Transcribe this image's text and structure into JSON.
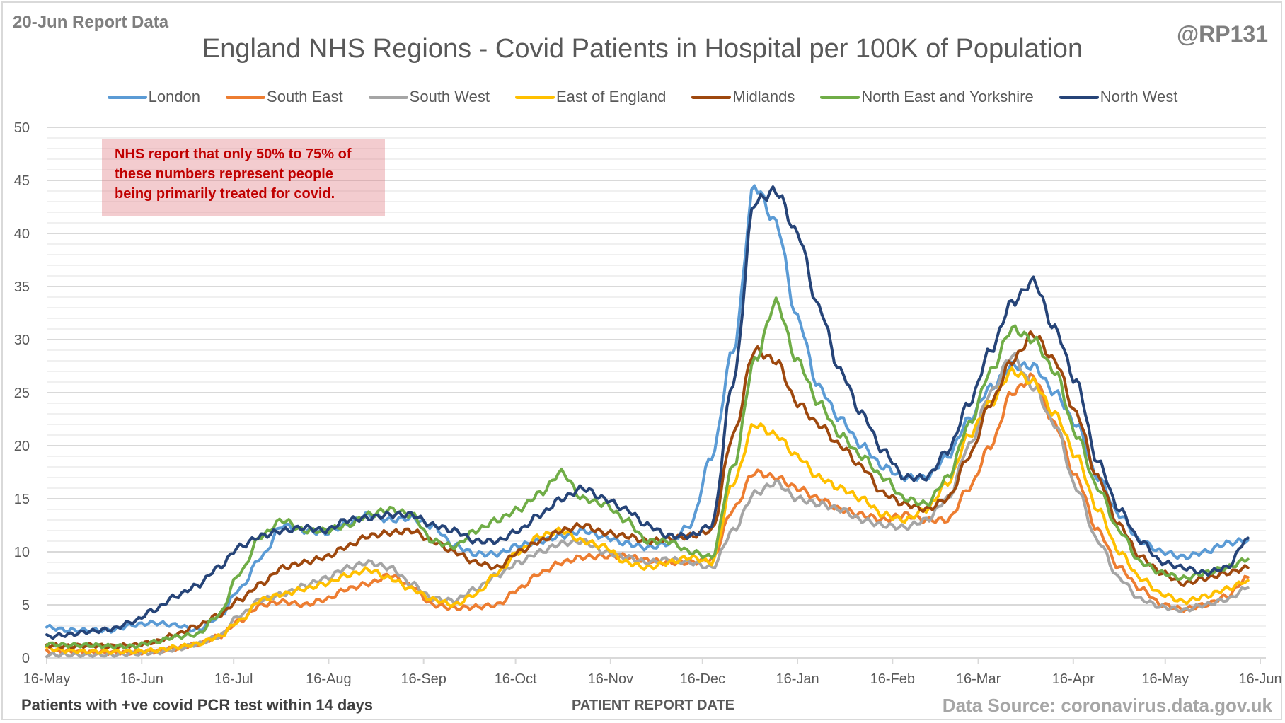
{
  "header": {
    "report_label": "20-Jun Report Data",
    "handle": "@RP131"
  },
  "annotation": {
    "lines": [
      "NHS report that only 50% to 75% of",
      "these numbers represent people",
      "being primarily treated for covid."
    ]
  },
  "footer": {
    "note": "Patients with +ve covid PCR test within 14 days",
    "source": "Data Source: coronavirus.data.gov.uk"
  },
  "chart_data": {
    "type": "line",
    "title": "England NHS Regions - Covid Patients in Hospital per 100K of Population",
    "xlabel": "PATIENT REPORT DATE",
    "ylabel": "",
    "ylim": [
      0,
      50
    ],
    "yticks": [
      0,
      5,
      10,
      15,
      20,
      25,
      30,
      35,
      40,
      45,
      50
    ],
    "grid": "major and minor horizontal (minor every 1)",
    "legend_position": "top",
    "x_start": "16-May",
    "x_step_days": 7,
    "x_total_days": 396,
    "xtick_labels": [
      "16-May",
      "16-Jun",
      "16-Jul",
      "16-Aug",
      "16-Sep",
      "16-Oct",
      "16-Nov",
      "16-Dec",
      "16-Jan",
      "16-Feb",
      "16-Mar",
      "16-Apr",
      "16-May",
      "16-Jun"
    ],
    "xtick_days": [
      0,
      31,
      61,
      92,
      123,
      153,
      184,
      214,
      245,
      276,
      304,
      335,
      365,
      396
    ],
    "series": [
      {
        "name": "London",
        "color": "#5b9bd5",
        "values": [
          2.9,
          2.6,
          2.6,
          2.6,
          3.1,
          3.3,
          3.1,
          2.6,
          3.8,
          6.5,
          9.5,
          12.5,
          12.0,
          11.8,
          12.6,
          13.5,
          13.0,
          13.2,
          12.4,
          10.6,
          9.8,
          9.8,
          10.6,
          11.0,
          11.5,
          12.0,
          11.4,
          10.8,
          10.4,
          10.8,
          12.5,
          19.0,
          29.0,
          44.5,
          41.0,
          32.0,
          25.5,
          22.5,
          20.0,
          18.0,
          17.0,
          17.0,
          19.0,
          22.5,
          25.5,
          27.5,
          27.5,
          25.0,
          22.0,
          17.0,
          13.5,
          11.0,
          10.0,
          9.5,
          10.0,
          10.8,
          11.1
        ]
      },
      {
        "name": "South East",
        "color": "#ed7d31",
        "values": [
          0.6,
          0.6,
          0.5,
          0.5,
          0.5,
          0.6,
          0.9,
          1.3,
          2.0,
          3.5,
          5.0,
          5.3,
          5.0,
          5.5,
          6.5,
          7.0,
          7.8,
          6.8,
          5.0,
          4.7,
          4.8,
          5.0,
          6.5,
          8.0,
          9.0,
          9.5,
          9.6,
          9.6,
          9.2,
          9.0,
          9.0,
          9.3,
          14.0,
          17.5,
          17.0,
          16.0,
          15.0,
          14.0,
          13.5,
          13.0,
          13.5,
          13.0,
          13.0,
          16.0,
          20.0,
          25.0,
          26.5,
          22.0,
          17.0,
          12.0,
          8.5,
          6.5,
          5.0,
          4.6,
          5.0,
          5.8,
          7.6
        ]
      },
      {
        "name": "South West",
        "color": "#a5a5a5",
        "values": [
          0.3,
          0.3,
          0.3,
          0.3,
          0.4,
          0.5,
          0.8,
          1.3,
          2.0,
          4.0,
          5.5,
          6.0,
          6.8,
          7.5,
          8.5,
          9.0,
          8.5,
          7.0,
          5.6,
          5.4,
          6.5,
          7.8,
          9.0,
          10.0,
          10.8,
          11.0,
          10.0,
          9.5,
          9.0,
          9.3,
          9.0,
          8.5,
          12.0,
          15.5,
          16.5,
          15.0,
          14.5,
          14.0,
          13.0,
          12.5,
          12.3,
          13.0,
          15.0,
          20.0,
          25.0,
          28.5,
          25.5,
          22.0,
          16.0,
          11.0,
          7.5,
          5.5,
          4.8,
          4.5,
          5.0,
          5.5,
          6.6
        ]
      },
      {
        "name": "East of England",
        "color": "#ffc000",
        "values": [
          0.9,
          0.7,
          0.6,
          0.6,
          0.6,
          0.7,
          1.0,
          1.3,
          2.0,
          3.5,
          5.5,
          6.0,
          6.5,
          7.0,
          7.8,
          8.3,
          7.5,
          6.5,
          5.5,
          5.0,
          6.0,
          8.0,
          10.0,
          11.5,
          12.0,
          11.0,
          10.5,
          9.0,
          8.5,
          9.0,
          9.5,
          9.0,
          16.5,
          22.0,
          21.0,
          19.0,
          17.0,
          16.0,
          15.0,
          13.5,
          13.0,
          14.0,
          16.5,
          21.0,
          24.0,
          27.0,
          26.0,
          23.0,
          19.0,
          14.0,
          10.0,
          7.5,
          6.0,
          5.3,
          5.8,
          6.5,
          7.3
        ]
      },
      {
        "name": "Midlands",
        "color": "#9e480e",
        "values": [
          1.2,
          1.1,
          1.2,
          1.1,
          1.2,
          1.5,
          2.2,
          3.0,
          4.0,
          5.5,
          7.0,
          8.5,
          9.0,
          9.5,
          10.5,
          11.5,
          11.8,
          12.0,
          11.0,
          10.0,
          9.0,
          8.5,
          10.0,
          11.0,
          12.0,
          12.5,
          11.8,
          11.5,
          11.0,
          11.2,
          11.5,
          12.0,
          21.0,
          29.0,
          28.0,
          24.0,
          22.0,
          20.0,
          18.0,
          15.5,
          14.5,
          14.0,
          15.0,
          19.0,
          24.0,
          28.0,
          30.5,
          28.0,
          23.0,
          17.0,
          12.5,
          9.5,
          8.0,
          7.0,
          7.5,
          8.0,
          8.5
        ]
      },
      {
        "name": "North East and Yorkshire",
        "color": "#70ad47",
        "values": [
          1.3,
          1.2,
          1.2,
          1.1,
          1.1,
          1.5,
          2.0,
          2.2,
          4.0,
          8.0,
          11.5,
          13.0,
          12.0,
          12.0,
          12.5,
          13.5,
          14.0,
          13.5,
          11.0,
          10.5,
          12.0,
          13.0,
          14.0,
          15.5,
          17.5,
          15.0,
          14.5,
          13.0,
          11.0,
          11.0,
          10.0,
          9.5,
          18.0,
          28.0,
          33.5,
          28.0,
          24.0,
          21.0,
          19.0,
          17.0,
          15.0,
          14.5,
          17.0,
          22.0,
          27.0,
          31.0,
          30.0,
          27.0,
          21.0,
          16.0,
          12.0,
          9.0,
          8.0,
          7.5,
          8.0,
          8.5,
          9.3
        ]
      },
      {
        "name": "North West",
        "color": "#264478",
        "values": [
          2.0,
          2.2,
          2.5,
          2.7,
          3.4,
          4.5,
          5.8,
          6.8,
          8.5,
          10.5,
          11.5,
          12.0,
          12.3,
          12.0,
          13.0,
          13.2,
          13.5,
          13.5,
          12.5,
          12.0,
          11.0,
          11.0,
          12.0,
          13.5,
          15.0,
          16.0,
          15.0,
          14.0,
          12.5,
          11.5,
          11.5,
          12.5,
          26.0,
          43.0,
          44.0,
          40.0,
          33.0,
          27.0,
          23.0,
          19.5,
          17.0,
          17.0,
          19.5,
          24.0,
          29.0,
          33.5,
          35.5,
          31.0,
          26.0,
          18.5,
          14.0,
          11.0,
          9.0,
          8.5,
          8.0,
          8.5,
          11.3
        ]
      }
    ]
  }
}
